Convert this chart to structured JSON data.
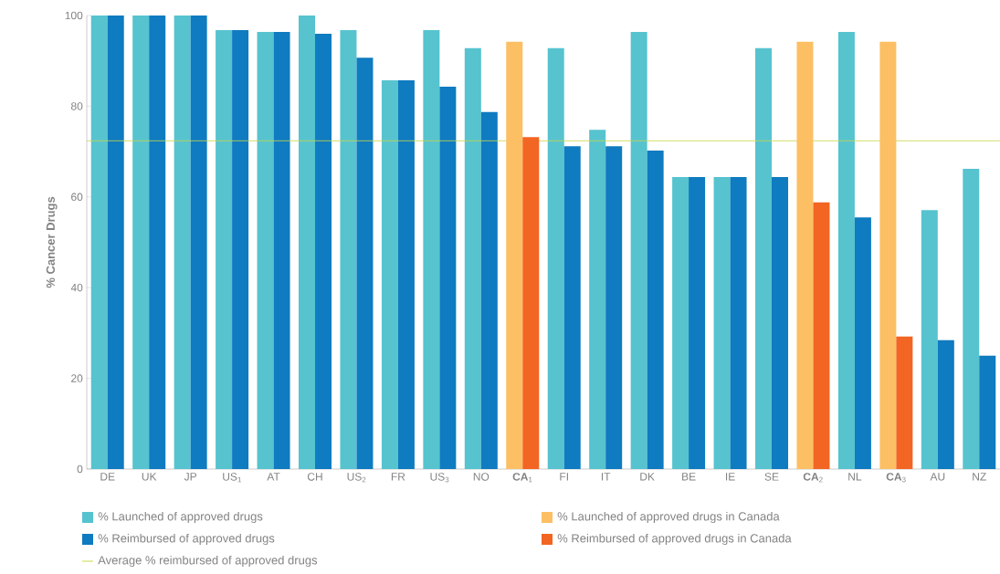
{
  "chart_data": {
    "type": "bar",
    "ylabel": "% Cancer Drugs",
    "categories": [
      "DE",
      "UK",
      "JP",
      "US$_{1}$",
      "AT",
      "CH",
      "US$_{2}$",
      "FR",
      "US$_{3}$",
      "NO",
      "**CA**$_{1}$",
      "FI",
      "IT",
      "DK",
      "BE",
      "IE",
      "SE",
      "**CA**$_{2}$",
      "NL",
      "**CA**$_{3}$",
      "AU",
      "NZ"
    ],
    "series": [
      {
        "name": "% Launched of approved drugs",
        "color": "#56c3cf",
        "values": [
          100,
          100,
          100,
          96.8,
          96.4,
          100,
          96.8,
          85.7,
          96.8,
          92.8,
          null,
          92.8,
          74.8,
          96.4,
          64.4,
          64.4,
          92.8,
          null,
          96.4,
          null,
          57.1,
          66.2
        ]
      },
      {
        "name": "% Reimbursed of approved drugs",
        "color": "#0f7bc0",
        "values": [
          100,
          100,
          100,
          96.8,
          96.4,
          96.0,
          90.7,
          85.7,
          84.3,
          78.7,
          null,
          71.2,
          71.2,
          70.2,
          64.4,
          64.4,
          64.4,
          null,
          55.5,
          null,
          28.4,
          25.0
        ]
      },
      {
        "name": "% Launched of approved drugs in Canada",
        "color": "#fdbf64",
        "values": [
          null,
          null,
          null,
          null,
          null,
          null,
          null,
          null,
          null,
          null,
          94.2,
          null,
          null,
          null,
          null,
          null,
          null,
          94.2,
          null,
          94.2,
          null,
          null
        ]
      },
      {
        "name": "% Reimbursed of approved drugs in Canada",
        "color": "#f26522",
        "values": [
          null,
          null,
          null,
          null,
          null,
          null,
          null,
          null,
          null,
          null,
          73.2,
          null,
          null,
          null,
          null,
          null,
          null,
          58.8,
          null,
          29.2,
          null,
          null
        ]
      }
    ],
    "ref_lines": [
      {
        "axis": "y",
        "value": 72.4,
        "label": "Average % reimbursed of approved drugs",
        "color": "#c8d84a"
      }
    ],
    "ylim": [
      0,
      100
    ],
    "yticks": [
      0,
      20,
      40,
      60,
      80,
      100
    ],
    "legend": "bottom"
  }
}
